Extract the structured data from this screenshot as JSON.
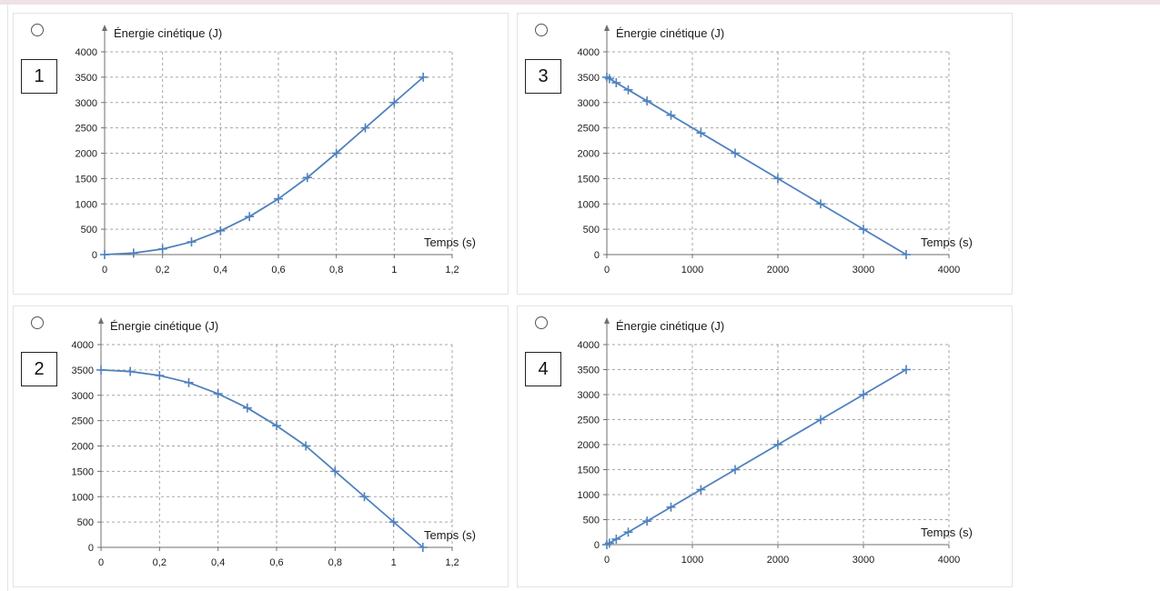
{
  "chart_data": [
    {
      "type": "line",
      "option_number": "1",
      "ylabel": "Énergie cinétique (J)",
      "xlabel": "Temps (s)",
      "xlim": [
        0,
        1.2
      ],
      "ylim": [
        0,
        4000
      ],
      "x_ticks": [
        0,
        0.2,
        0.4,
        0.6,
        0.8,
        1,
        1.2
      ],
      "x_tick_labels": [
        "0",
        "0,2",
        "0,4",
        "0,6",
        "0,8",
        "1",
        "1,2"
      ],
      "y_ticks": [
        0,
        500,
        1000,
        1500,
        2000,
        2500,
        3000,
        3500,
        4000
      ],
      "y_tick_labels": [
        "0",
        "500",
        "1000",
        "1500",
        "2000",
        "2500",
        "3000",
        "3500",
        "4000"
      ],
      "grid": true,
      "color": "#4f81bd",
      "series": [
        {
          "x": [
            0,
            0.1,
            0.2,
            0.3,
            0.4,
            0.5,
            0.6,
            0.7,
            0.8,
            0.9,
            1.0,
            1.1
          ],
          "y": [
            0,
            30,
            110,
            250,
            470,
            750,
            1100,
            1520,
            2000,
            2500,
            3000,
            3500
          ]
        }
      ]
    },
    {
      "type": "line",
      "option_number": "3",
      "ylabel": "Énergie cinétique (J)",
      "xlabel": "Temps (s)",
      "xlim": [
        0,
        4000
      ],
      "ylim": [
        0,
        4000
      ],
      "x_ticks": [
        0,
        1000,
        2000,
        3000,
        4000
      ],
      "x_tick_labels": [
        "0",
        "1000",
        "2000",
        "3000",
        "4000"
      ],
      "y_ticks": [
        0,
        500,
        1000,
        1500,
        2000,
        2500,
        3000,
        3500,
        4000
      ],
      "y_tick_labels": [
        "0",
        "500",
        "1000",
        "1500",
        "2000",
        "2500",
        "3000",
        "3500",
        "4000"
      ],
      "grid": true,
      "color": "#4f81bd",
      "series": [
        {
          "x": [
            0,
            30,
            110,
            250,
            470,
            750,
            1100,
            1500,
            2000,
            2500,
            3000,
            3500
          ],
          "y": [
            3500,
            3470,
            3390,
            3250,
            3030,
            2750,
            2400,
            2000,
            1500,
            1000,
            500,
            0
          ]
        }
      ]
    },
    {
      "type": "line",
      "option_number": "2",
      "ylabel": "Énergie cinétique (J)",
      "xlabel": "Temps (s)",
      "xlim": [
        0,
        1.2
      ],
      "ylim": [
        0,
        4000
      ],
      "x_ticks": [
        0,
        0.2,
        0.4,
        0.6,
        0.8,
        1,
        1.2
      ],
      "x_tick_labels": [
        "0",
        "0,2",
        "0,4",
        "0,6",
        "0,8",
        "1",
        "1,2"
      ],
      "y_ticks": [
        0,
        500,
        1000,
        1500,
        2000,
        2500,
        3000,
        3500,
        4000
      ],
      "y_tick_labels": [
        "0",
        "500",
        "1000",
        "1500",
        "2000",
        "2500",
        "3000",
        "3500",
        "4000"
      ],
      "grid": true,
      "color": "#4f81bd",
      "series": [
        {
          "x": [
            0,
            0.1,
            0.2,
            0.3,
            0.4,
            0.5,
            0.6,
            0.7,
            0.8,
            0.9,
            1.0,
            1.1
          ],
          "y": [
            3500,
            3470,
            3390,
            3250,
            3030,
            2750,
            2400,
            2000,
            1500,
            1000,
            500,
            0
          ]
        }
      ]
    },
    {
      "type": "line",
      "option_number": "4",
      "ylabel": "Énergie cinétique (J)",
      "xlabel": "Temps (s)",
      "xlim": [
        0,
        4000
      ],
      "ylim": [
        0,
        4000
      ],
      "x_ticks": [
        0,
        1000,
        2000,
        3000,
        4000
      ],
      "x_tick_labels": [
        "0",
        "1000",
        "2000",
        "3000",
        "4000"
      ],
      "y_ticks": [
        0,
        500,
        1000,
        1500,
        2000,
        2500,
        3000,
        3500,
        4000
      ],
      "y_tick_labels": [
        "0",
        "500",
        "1000",
        "1500",
        "2000",
        "2500",
        "3000",
        "3500",
        "4000"
      ],
      "grid": true,
      "color": "#4f81bd",
      "series": [
        {
          "x": [
            0,
            30,
            110,
            250,
            470,
            750,
            1100,
            1500,
            2000,
            2500,
            3000,
            3500
          ],
          "y": [
            0,
            30,
            110,
            250,
            470,
            750,
            1100,
            1500,
            2000,
            2500,
            3000,
            3500
          ]
        }
      ]
    }
  ]
}
